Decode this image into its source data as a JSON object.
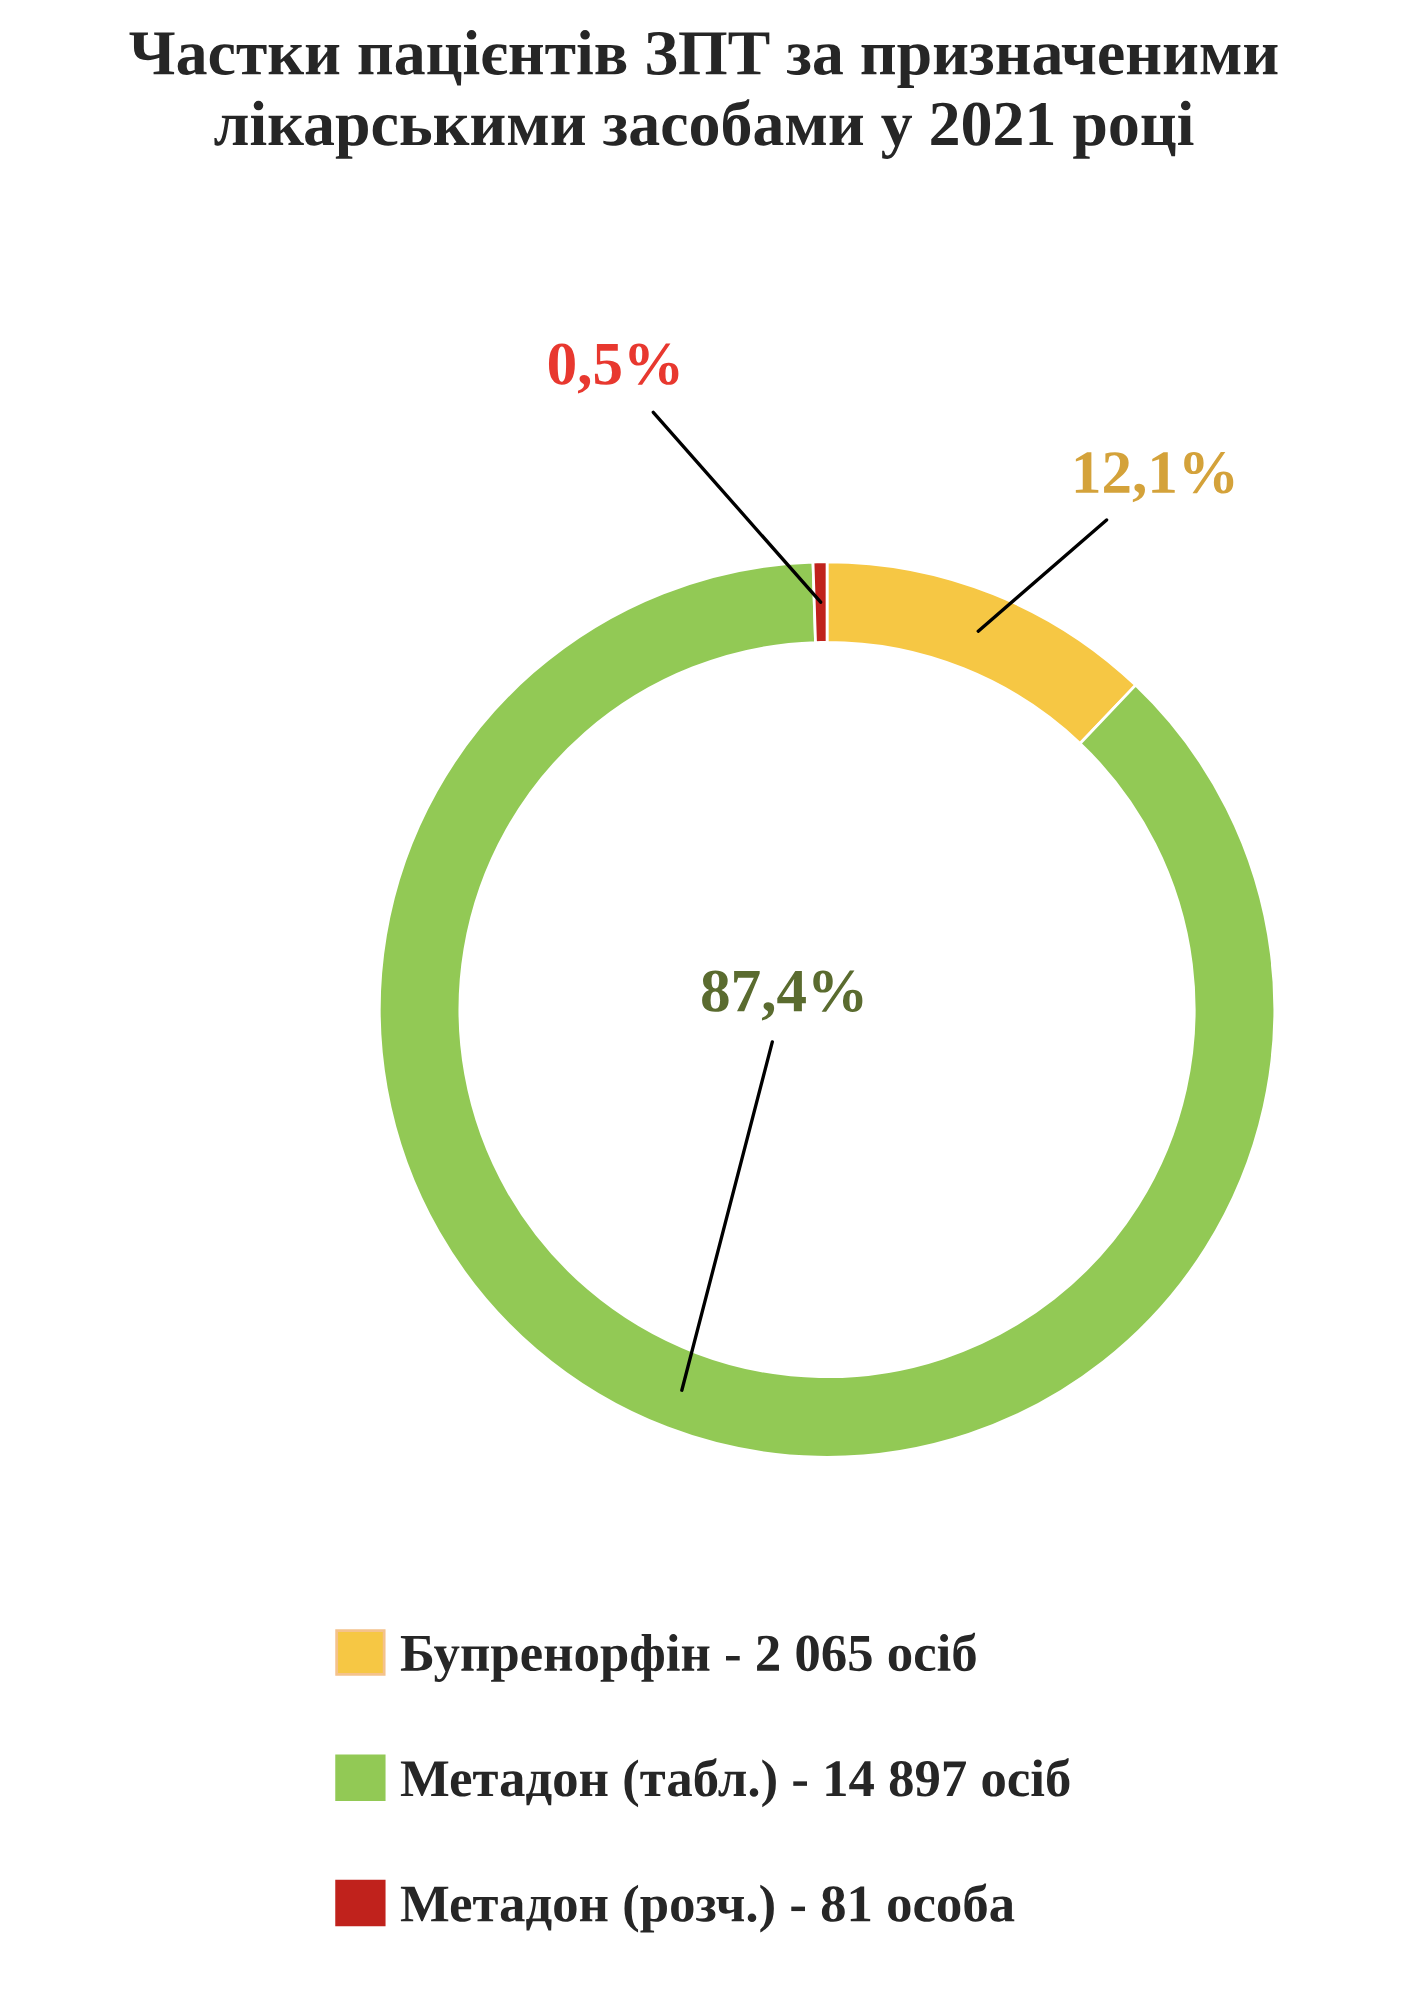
{
  "chart_data": {
    "type": "donut",
    "title": "Частки пацієнтів ЗПТ за призначеними лікарськими засобами у 2021 році",
    "categories": [
      "Бупренорфін - 2 065 осіб",
      "Метадон (табл.) - 14 897 осіб",
      "Метадон (розч.) - 81 особа"
    ],
    "values": [
      12.1,
      87.4,
      0.5
    ],
    "colors": [
      "#f6c744",
      "#92c955",
      "#c0221c"
    ],
    "value_labels": [
      "12,1%",
      "87,4%",
      "0,5%"
    ],
    "legend": "bottom"
  }
}
